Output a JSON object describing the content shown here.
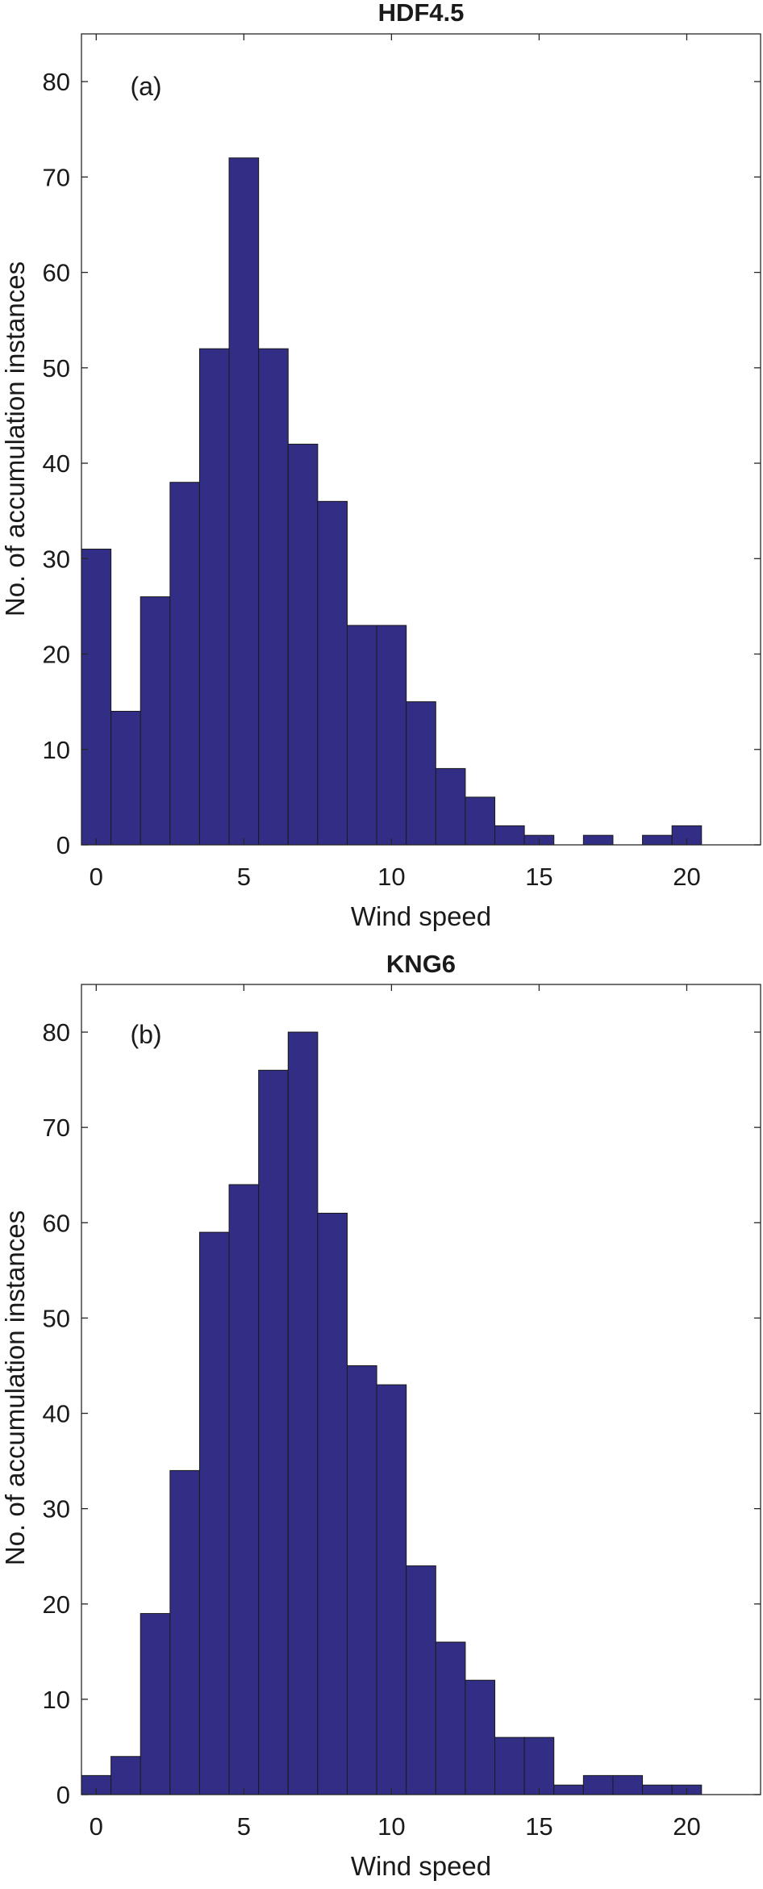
{
  "bar_color": "#332e85",
  "chart_data": [
    {
      "type": "bar",
      "title": "HDF4.5",
      "panel_label": "(a)",
      "xlabel": "Wind speed",
      "ylabel": "No. of accumulation instances",
      "xlim": [
        -0.5,
        22.5
      ],
      "ylim": [
        0,
        85
      ],
      "xticks": [
        0,
        5,
        10,
        15,
        20
      ],
      "yticks": [
        0,
        10,
        20,
        30,
        40,
        50,
        60,
        70,
        80
      ],
      "categories": [
        0,
        1,
        2,
        3,
        4,
        5,
        6,
        7,
        8,
        9,
        10,
        11,
        12,
        13,
        14,
        15,
        16,
        17,
        18,
        19,
        20
      ],
      "values": [
        31,
        14,
        26,
        38,
        52,
        72,
        52,
        42,
        36,
        23,
        23,
        15,
        8,
        5,
        2,
        1,
        0,
        1,
        0,
        1,
        2
      ],
      "grid": false
    },
    {
      "type": "bar",
      "title": "KNG6",
      "panel_label": "(b)",
      "xlabel": "Wind speed",
      "ylabel": "No. of accumulation instances",
      "xlim": [
        -0.5,
        22.5
      ],
      "ylim": [
        0,
        85
      ],
      "xticks": [
        0,
        5,
        10,
        15,
        20
      ],
      "yticks": [
        0,
        10,
        20,
        30,
        40,
        50,
        60,
        70,
        80
      ],
      "categories": [
        0,
        1,
        2,
        3,
        4,
        5,
        6,
        7,
        8,
        9,
        10,
        11,
        12,
        13,
        14,
        15,
        16,
        17,
        18,
        19,
        20
      ],
      "values": [
        2,
        4,
        19,
        34,
        59,
        64,
        76,
        80,
        61,
        45,
        43,
        24,
        16,
        12,
        6,
        6,
        1,
        2,
        2,
        1,
        1
      ],
      "grid": false
    }
  ]
}
